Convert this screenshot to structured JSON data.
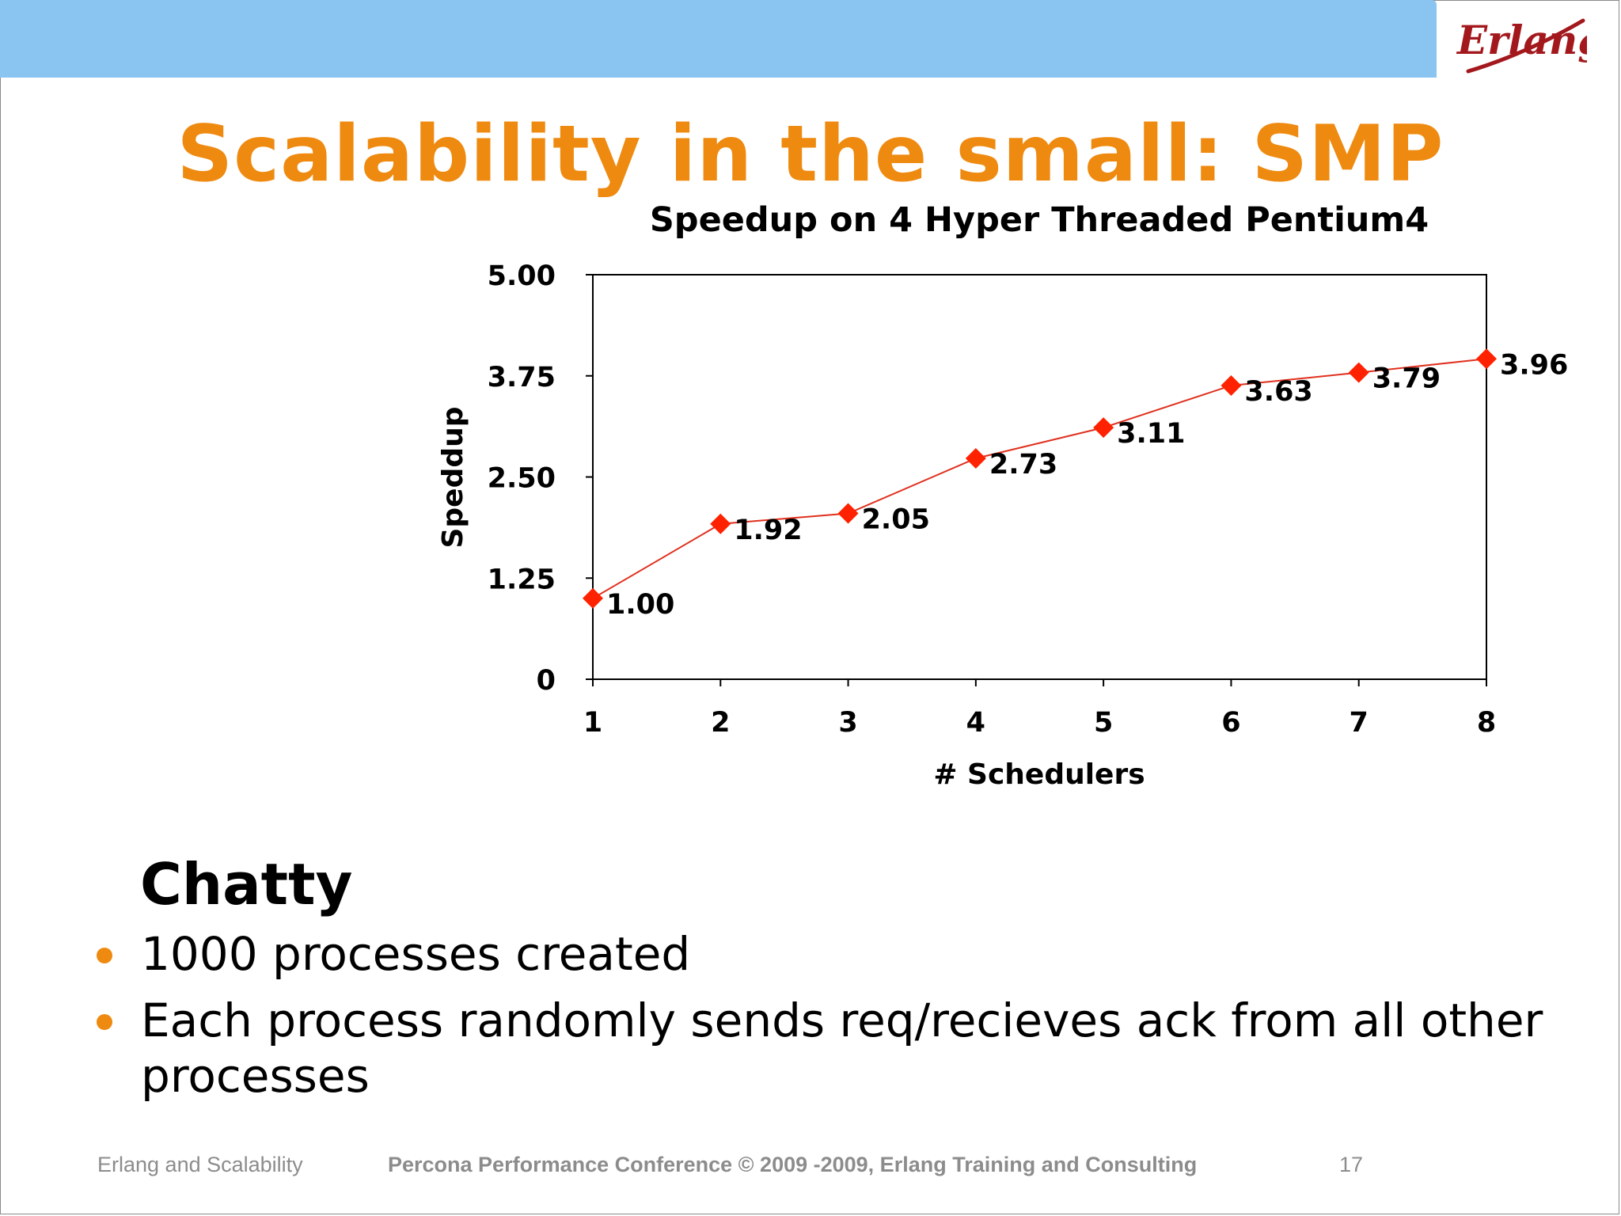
{
  "header": {
    "logo_text": "Erlang",
    "band_color": "#8ac5f2"
  },
  "slide": {
    "title": "Scalability in the small: SMP",
    "title_color": "#ef8a10",
    "heading": "Chatty",
    "bullets": [
      "1000 processes created",
      "Each process randomly sends req/recieves ack from all other processes"
    ]
  },
  "footer": {
    "left": "Erlang and Scalability",
    "center": "Percona Performance Conference © 2009 -2009,  Erlang Training and Consulting",
    "page_number": "17"
  },
  "chart_data": {
    "type": "line",
    "title": "Speedup on 4 Hyper Threaded  Pentium4",
    "xlabel": "# Schedulers",
    "ylabel": "Speddup",
    "x": [
      1,
      2,
      3,
      4,
      5,
      6,
      7,
      8
    ],
    "series": [
      {
        "values": [
          1.0,
          1.92,
          2.05,
          2.73,
          3.11,
          3.63,
          3.79,
          3.96
        ],
        "color": "#ff2200",
        "marker": "diamond"
      }
    ],
    "data_labels": [
      "1.00",
      "1.92",
      "2.05",
      "2.73",
      "3.11",
      "3.63",
      "3.79",
      "3.96"
    ],
    "y_tick_labels": [
      "0",
      "1.25",
      "2.50",
      "3.75",
      "5.00"
    ],
    "y_ticks": [
      0,
      1.25,
      2.5,
      3.75,
      5.0
    ],
    "ylim": [
      0,
      5
    ],
    "xlim": [
      1,
      8
    ],
    "grid": false,
    "legend": "none"
  }
}
